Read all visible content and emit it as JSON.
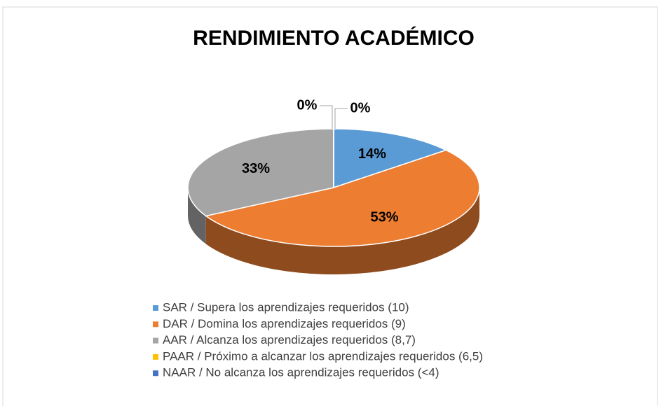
{
  "chart_data": {
    "type": "pie",
    "title": "RENDIMIENTO ACADÉMICO",
    "categories": [
      "SAR / Supera los aprendizajes requeridos (10)",
      "DAR / Domina los aprendizajes requeridos (9)",
      "AAR / Alcanza los aprendizajes requeridos (8,7)",
      "PAAR / Próximo a alcanzar los aprendizajes requeridos (6,5)",
      "NAAR / No alcanza los aprendizajes requeridos (<4)"
    ],
    "values": [
      14,
      53,
      33,
      0,
      0
    ],
    "value_labels": [
      "14%",
      "53%",
      "33%",
      "0%",
      "0%"
    ],
    "colors": [
      "#5b9bd5",
      "#ed7d31",
      "#a5a5a5",
      "#ffc000",
      "#4472c4"
    ],
    "legend": "bottom"
  }
}
